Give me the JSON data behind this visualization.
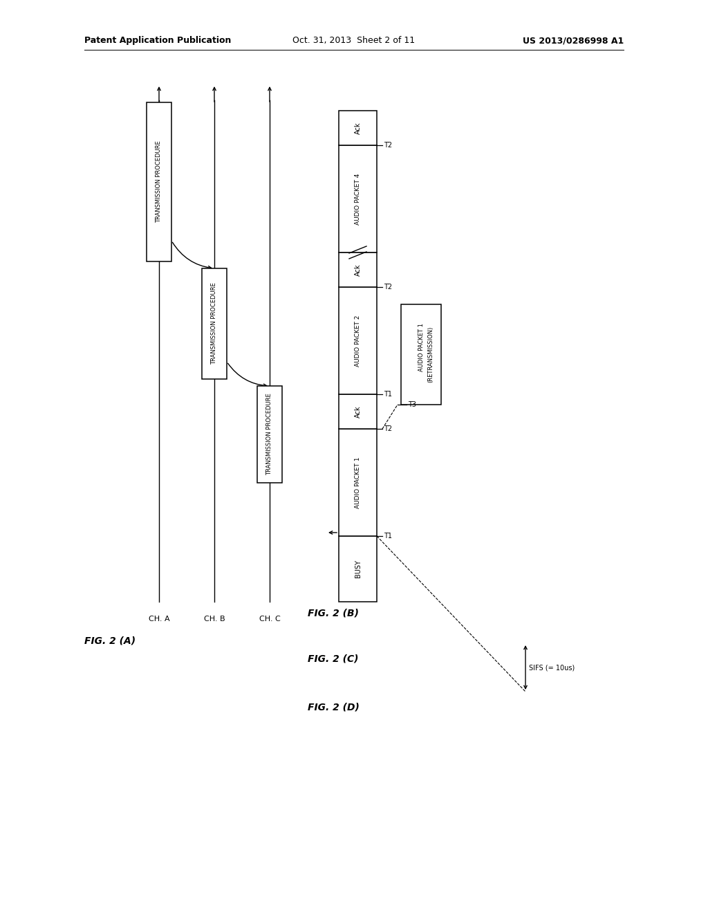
{
  "header_left": "Patent Application Publication",
  "header_mid": "Oct. 31, 2013  Sheet 2 of 11",
  "header_right": "US 2013/0286998 A1",
  "fig_A_label": "FIG. 2 (A)",
  "fig_B_label": "FIG. 2 (B)",
  "fig_C_label": "FIG. 2 (C)",
  "fig_D_label": "FIG. 2 (D)",
  "bg_color": "#ffffff"
}
